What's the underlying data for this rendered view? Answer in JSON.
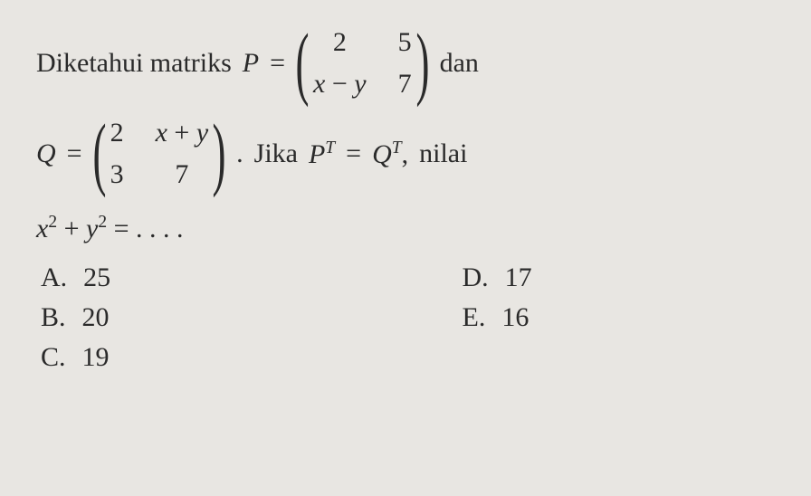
{
  "background_color": "#e8e6e2",
  "text_color": "#2a2a2a",
  "font_family": "Times New Roman, serif",
  "base_fontsize": 30,
  "line1": {
    "prefix": "Diketahui  matriks",
    "var": "P",
    "eq": "=",
    "matrix": {
      "r1c1": "2",
      "r1c2": "5",
      "r2c1_a": "x",
      "r2c1_op": "−",
      "r2c1_b": "y",
      "r2c2": "7"
    },
    "suffix": "dan"
  },
  "line2": {
    "var": "Q",
    "eq": "=",
    "matrix": {
      "r1c1": "2",
      "r1c2_a": "x",
      "r1c2_op": "+",
      "r1c2_b": "y",
      "r2c1": "3",
      "r2c2": "7"
    },
    "period": ".",
    "mid": "Jika",
    "lhs_var": "P",
    "lhs_sup": "T",
    "eq2": "=",
    "rhs_var": "Q",
    "rhs_sup": "T",
    "comma": ",",
    "tail": "nilai"
  },
  "line3": {
    "x": "x",
    "exp1": "2",
    "plus": "+",
    "y": "y",
    "exp2": "2",
    "eq": "=",
    "dots": ". . . ."
  },
  "options": {
    "A": {
      "letter": "A.",
      "value": "25"
    },
    "B": {
      "letter": "B.",
      "value": "20"
    },
    "C": {
      "letter": "C.",
      "value": "19"
    },
    "D": {
      "letter": "D.",
      "value": "17"
    },
    "E": {
      "letter": "E.",
      "value": "16"
    }
  }
}
